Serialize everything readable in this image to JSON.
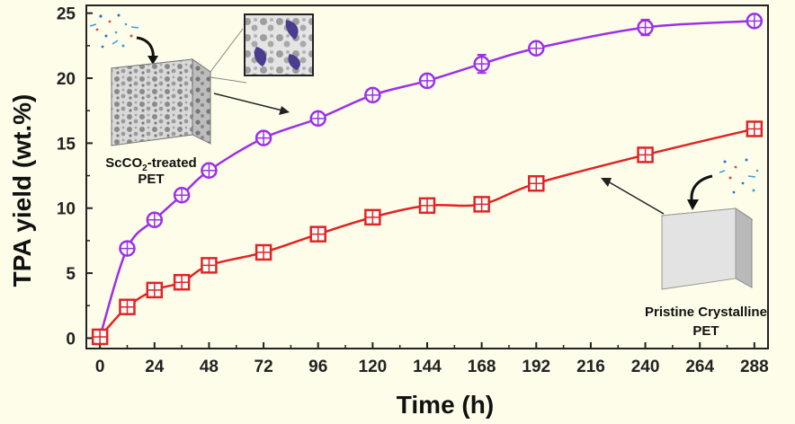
{
  "chart_data": {
    "type": "line",
    "title": "",
    "xlabel": "Time (h)",
    "ylabel": "TPA yield (wt.%)",
    "xlim": [
      -6,
      294
    ],
    "ylim": [
      -0.8,
      25.6
    ],
    "x_ticks": [
      0,
      24,
      48,
      72,
      96,
      120,
      144,
      168,
      192,
      216,
      240,
      264,
      288
    ],
    "y_ticks": [
      0,
      5,
      10,
      15,
      20,
      25
    ],
    "grid": false,
    "series": [
      {
        "name": "ScCO2-treated PET",
        "color": "#9b30e8",
        "marker": "circle-cross",
        "x": [
          0,
          12,
          24,
          36,
          48,
          72,
          96,
          120,
          144,
          168,
          192,
          240,
          288
        ],
        "y": [
          0.1,
          6.9,
          9.1,
          11.0,
          12.9,
          15.4,
          16.9,
          18.7,
          19.8,
          21.1,
          22.3,
          23.9,
          24.4
        ],
        "err": [
          0.2,
          0.3,
          0.4,
          0.4,
          0.3,
          0.4,
          0.4,
          0.4,
          0.4,
          0.7,
          0.4,
          0.6,
          0.4
        ]
      },
      {
        "name": "Pristine Crystalline PET",
        "color": "#e02424",
        "marker": "square-cross",
        "x": [
          0,
          12,
          24,
          36,
          48,
          72,
          96,
          120,
          144,
          168,
          192,
          240,
          288
        ],
        "y": [
          0.1,
          2.4,
          3.7,
          4.3,
          5.6,
          6.6,
          8.0,
          9.3,
          10.2,
          10.3,
          11.9,
          14.1,
          16.1
        ],
        "err": [
          0.2,
          0.3,
          0.3,
          0.4,
          0.3,
          0.3,
          0.3,
          0.3,
          0.4,
          0.3,
          0.5,
          0.3,
          0.3
        ]
      }
    ],
    "insets": [
      {
        "name": "scco2-foam-pet",
        "label_parts": [
          "ScCO",
          "2",
          "-treated"
        ],
        "label_line2": "PET"
      },
      {
        "name": "pristine-pet",
        "label_line1": "Pristine Crystalline",
        "label_line2": "PET"
      }
    ]
  }
}
